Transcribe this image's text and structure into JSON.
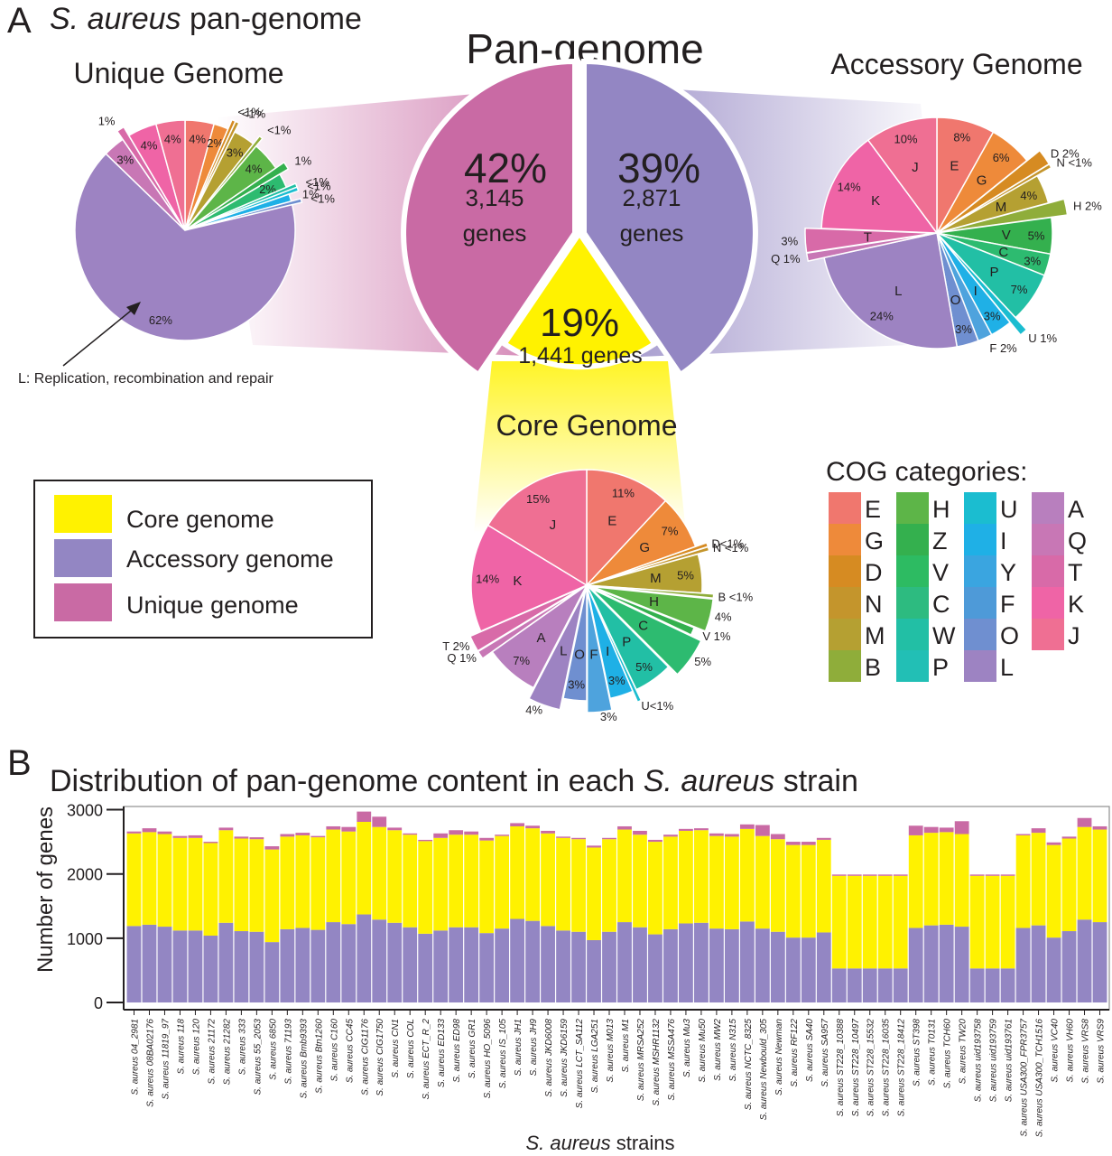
{
  "panel_a": {
    "letter": "A",
    "title_italic": "S. aureus",
    "title_rest": " pan-genome",
    "center_title": "Pan-genome"
  },
  "pan": {
    "unique": {
      "pct": "42%",
      "count": "3,145",
      "unit": "genes",
      "color": "#c96aa4"
    },
    "accessory": {
      "pct": "39%",
      "count": "2,871",
      "unit": "genes",
      "color": "#9386c3"
    },
    "core": {
      "pct": "19%",
      "count_line": "1,441 genes",
      "color": "#fff200"
    }
  },
  "unique_genome": {
    "title": "Unique Genome",
    "arrow_note": "L: Replication, recombination and repair",
    "slices": [
      {
        "cat": "E",
        "value": 4,
        "label": "4%",
        "color": "#f0776e"
      },
      {
        "cat": "G",
        "value": 2,
        "label": "2%",
        "color": "#ee8a3a"
      },
      {
        "cat": "D",
        "value": 0.5,
        "label": "<1%",
        "color": "#d68b22",
        "explode": true
      },
      {
        "cat": "N",
        "value": 0.5,
        "label": "<1%",
        "color": "#c4952c",
        "explode": true
      },
      {
        "cat": "M",
        "value": 3,
        "label": "3%",
        "color": "#b5a032"
      },
      {
        "cat": "B",
        "value": 0.5,
        "label": "<1%",
        "color": "#8fad3a",
        "explode": true
      },
      {
        "cat": "H",
        "value": 4,
        "label": "4%",
        "color": "#5db548"
      },
      {
        "cat": "Z",
        "value": 1,
        "label": "1%",
        "color": "#34b04e",
        "explode": true
      },
      {
        "cat": "V",
        "value": 2,
        "label": "2%",
        "color": "#2dbb70"
      },
      {
        "cat": "C",
        "value": 0.5,
        "label": "<1%",
        "color": "#22bfa5",
        "explode": true
      },
      {
        "cat": "U",
        "value": 0.5,
        "label": "<1%",
        "color": "#1bbdd0",
        "explode": true
      },
      {
        "cat": "I",
        "value": 1,
        "label": "1%",
        "color": "#1fb0e6"
      },
      {
        "cat": "O",
        "value": 0.5,
        "label": "<1%",
        "color": "#6f8fd0",
        "explode": true
      },
      {
        "cat": "L",
        "value": 62,
        "label": "62%",
        "color": "#9d83c2"
      },
      {
        "cat": "Q",
        "value": 3,
        "label": "3%",
        "color": "#c877b5"
      },
      {
        "cat": "T",
        "value": 1,
        "label": "1%",
        "color": "#d86aa8",
        "explode": true
      },
      {
        "cat": "K",
        "value": 4,
        "label": "4%",
        "color": "#ef64a6"
      },
      {
        "cat": "J",
        "value": 4,
        "label": "4%",
        "color": "#ef6f93"
      }
    ]
  },
  "accessory_genome": {
    "title": "Accessory Genome",
    "slices": [
      {
        "cat": "E",
        "value": 8,
        "label": "8%",
        "letter": "E",
        "color": "#f0776e"
      },
      {
        "cat": "G",
        "value": 6,
        "label": "6%",
        "letter": "G",
        "color": "#ee8a3a"
      },
      {
        "cat": "D",
        "value": 2,
        "label": "D 2%",
        "letter": "",
        "color": "#d68b22",
        "explode": true
      },
      {
        "cat": "N",
        "value": 0.5,
        "label": "N <1%",
        "letter": "",
        "color": "#c4952c",
        "explode": true
      },
      {
        "cat": "M",
        "value": 4,
        "label": "4%",
        "letter": "M",
        "color": "#b5a032"
      },
      {
        "cat": "H",
        "value": 2,
        "label": "H  2%",
        "letter": "",
        "color": "#8fad3a",
        "explode": true
      },
      {
        "cat": "V",
        "value": 5,
        "label": "5%",
        "letter": "V",
        "color": "#34b04e"
      },
      {
        "cat": "C",
        "value": 3,
        "label": "3%",
        "letter": "C",
        "color": "#2dbb70"
      },
      {
        "cat": "P",
        "value": 7,
        "label": "7%",
        "letter": "P",
        "color": "#22bfa5"
      },
      {
        "cat": "U",
        "value": 1,
        "label": "U  1%",
        "letter": "",
        "color": "#1bbdd0",
        "explode": true
      },
      {
        "cat": "I",
        "value": 3,
        "label": "3%",
        "letter": "I",
        "color": "#1fb0e6"
      },
      {
        "cat": "F",
        "value": 2,
        "label": "F 2%",
        "letter": "",
        "color": "#4ea3dd"
      },
      {
        "cat": "O",
        "value": 3,
        "label": "3%",
        "letter": "O",
        "color": "#6f8fd0"
      },
      {
        "cat": "L",
        "value": 24,
        "label": "24%",
        "letter": "L",
        "color": "#9d83c2"
      },
      {
        "cat": "Q",
        "value": 1,
        "label": "Q 1%",
        "letter": "",
        "color": "#c877b5",
        "explode": true
      },
      {
        "cat": "T",
        "value": 3,
        "label": "3%",
        "letter": "T",
        "color": "#d86aa8",
        "explode": true
      },
      {
        "cat": "K",
        "value": 14,
        "label": "14%",
        "letter": "K",
        "color": "#ef64a6"
      },
      {
        "cat": "J",
        "value": 10,
        "label": "10%",
        "letter": "J",
        "color": "#ef6f93"
      }
    ]
  },
  "core_genome": {
    "title": "Core Genome",
    "slices": [
      {
        "cat": "E",
        "value": 11,
        "label": "11%",
        "letter": "E",
        "color": "#f0776e"
      },
      {
        "cat": "G",
        "value": 7,
        "label": "7%",
        "letter": "G",
        "color": "#ee8a3a"
      },
      {
        "cat": "D",
        "value": 0.5,
        "label": "D<1%",
        "letter": "",
        "color": "#d68b22",
        "explode": true
      },
      {
        "cat": "N",
        "value": 0.5,
        "label": "N <1%",
        "letter": "",
        "color": "#c4952c",
        "explode": true
      },
      {
        "cat": "M",
        "value": 5,
        "label": "5%",
        "letter": "M",
        "color": "#b5a032"
      },
      {
        "cat": "B",
        "value": 0.5,
        "label": "B <1%",
        "letter": "",
        "color": "#8fad3a",
        "explode": true
      },
      {
        "cat": "H",
        "value": 4,
        "label": "4%",
        "letter": "H",
        "color": "#5db548",
        "explode": true
      },
      {
        "cat": "V",
        "value": 1,
        "label": "V 1%",
        "letter": "",
        "color": "#34b04e"
      },
      {
        "cat": "C",
        "value": 5,
        "label": "5%",
        "letter": "C",
        "color": "#2dbb70",
        "explode": true
      },
      {
        "cat": "P",
        "value": 5,
        "label": "5%",
        "letter": "P",
        "color": "#22bfa5"
      },
      {
        "cat": "U",
        "value": 0.5,
        "label": "U<1%",
        "letter": "",
        "color": "#1bbdd0",
        "explode": true
      },
      {
        "cat": "I",
        "value": 3,
        "label": "3%",
        "letter": "I",
        "color": "#1fb0e6"
      },
      {
        "cat": "F",
        "value": 3,
        "label": "3%",
        "letter": "F",
        "color": "#4ea3dd",
        "explode": true
      },
      {
        "cat": "O",
        "value": 3,
        "label": "3%",
        "letter": "O",
        "color": "#6f8fd0"
      },
      {
        "cat": "L",
        "value": 4,
        "label": "4%",
        "letter": "L",
        "color": "#9d83c2",
        "explode": true
      },
      {
        "cat": "A",
        "value": 7,
        "label": "7%",
        "letter": "A",
        "color": "#b87fbe"
      },
      {
        "cat": "Q",
        "value": 1,
        "label": "Q  1%",
        "letter": "",
        "color": "#c877b5",
        "explode": true
      },
      {
        "cat": "T",
        "value": 2,
        "label": "T 2%",
        "letter": "",
        "color": "#d86aa8",
        "explode": true
      },
      {
        "cat": "K",
        "value": 14,
        "label": "14%",
        "letter": "K",
        "color": "#ef64a6"
      },
      {
        "cat": "J",
        "value": 15,
        "label": "15%",
        "letter": "J",
        "color": "#ef6f93"
      }
    ]
  },
  "legend": {
    "items": [
      {
        "label": "Core genome",
        "color": "#fff200"
      },
      {
        "label": "Accessory genome",
        "color": "#9386c3"
      },
      {
        "label": "Unique genome",
        "color": "#c96aa4"
      }
    ]
  },
  "cog": {
    "title": "COG categories:",
    "columns": [
      [
        {
          "l": "E",
          "c": "#f0776e"
        },
        {
          "l": "G",
          "c": "#ee8a3a"
        },
        {
          "l": "D",
          "c": "#d68b22"
        },
        {
          "l": "N",
          "c": "#c4952c"
        },
        {
          "l": "M",
          "c": "#b5a032"
        },
        {
          "l": "B",
          "c": "#8fad3a"
        }
      ],
      [
        {
          "l": "H",
          "c": "#5db548"
        },
        {
          "l": "Z",
          "c": "#34b04e"
        },
        {
          "l": "V",
          "c": "#2dbb62"
        },
        {
          "l": "C",
          "c": "#2dbb80"
        },
        {
          "l": "W",
          "c": "#22bfa5"
        },
        {
          "l": "P",
          "c": "#22bfb5"
        }
      ],
      [
        {
          "l": "U",
          "c": "#1bbdd0"
        },
        {
          "l": "I",
          "c": "#1fb0e6"
        },
        {
          "l": "Y",
          "c": "#3aa5e0"
        },
        {
          "l": "F",
          "c": "#4e9ad8"
        },
        {
          "l": "O",
          "c": "#6f8fd0"
        },
        {
          "l": "L",
          "c": "#9d83c2"
        }
      ],
      [
        {
          "l": "A",
          "c": "#b87fbe"
        },
        {
          "l": "Q",
          "c": "#c877b5"
        },
        {
          "l": "T",
          "c": "#d86aa8"
        },
        {
          "l": "K",
          "c": "#ef64a6"
        },
        {
          "l": "J",
          "c": "#ef6f93"
        }
      ]
    ]
  },
  "panel_b": {
    "letter": "B",
    "title_pre": "Distribution of pan-genome content in each ",
    "title_italic": "S. aureus",
    "title_post": " strain",
    "ylabel": "Number of genes",
    "xlabel_italic": "S. aureus",
    "xlabel_rest": " strains"
  },
  "chart_data": {
    "type": "bar",
    "stacked": true,
    "title": "Distribution of pan-genome content in each S. aureus strain",
    "xlabel": "S. aureus strains",
    "ylabel": "Number of genes",
    "ylim": [
      0,
      3050
    ],
    "yticks": [
      0,
      1000,
      2000,
      3000
    ],
    "grid": false,
    "categories": [
      "S. aureus 04_2981",
      "S. aureus 08BA02176",
      "S. aureus 11819_97",
      "S. aureus 118",
      "S. aureus 120",
      "S. aureus 21172",
      "S. aureus 21282",
      "S. aureus 333",
      "S. aureus 55_2053",
      "S. aureus 6850",
      "S. aureus 71193",
      "S. aureus Bmb9393",
      "S. aureus Btn1260",
      "S. aureus C160",
      "S. aureus CC45",
      "S. aureus CIG1176",
      "S. aureus CIG1750",
      "S. aureus CN1",
      "S. aureus COL",
      "S. aureus ECT_R_2",
      "S. aureus ED133",
      "S. aureus ED98",
      "S. aureus GR1",
      "S. aureus HO_5096",
      "S. aureus IS_105",
      "S. aureus JH1",
      "S. aureus JH9",
      "S. aureus JKD6008",
      "S. aureus JKD6159",
      "S. aureus LCT_SA112",
      "S. aureus LGA251",
      "S. aureus M013",
      "S. aureus M1",
      "S. aureus MRSA252",
      "S. aureus MSHR1132",
      "S. aureus MSSA476",
      "S. aureus Mu3",
      "S. aureus Mu50",
      "S. aureus MW2",
      "S. aureus N315",
      "S. aureus NCTC_8325",
      "S. aureus Newbould_305",
      "S. aureus Newman",
      "S. aureus RF122",
      "S. aureus SA40",
      "S. aureus SA957",
      "S. aureus ST228_10388",
      "S. aureus ST228_10497",
      "S. aureus ST228_15532",
      "S. aureus ST228_16035",
      "S. aureus ST228_18412",
      "S. aureus ST398",
      "S. aureus T0131",
      "S. aureus TCH60",
      "S. aureus TW20",
      "S. aureus uid193758",
      "S. aureus uid193759",
      "S. aureus uid193761",
      "S. aureus USA300_FPR3757",
      "S. aureus USA300_TCH1516",
      "S. aureus VC40",
      "S. aureus VH60",
      "S. aureus VRS8",
      "S. aureus VRS9"
    ],
    "series": [
      {
        "name": "Accessory genome",
        "color": "#9386c3",
        "values": [
          1190,
          1210,
          1180,
          1120,
          1120,
          1040,
          1240,
          1110,
          1100,
          940,
          1140,
          1160,
          1130,
          1250,
          1220,
          1370,
          1290,
          1240,
          1170,
          1070,
          1120,
          1170,
          1170,
          1080,
          1150,
          1300,
          1270,
          1190,
          1120,
          1100,
          970,
          1100,
          1250,
          1170,
          1060,
          1140,
          1230,
          1240,
          1150,
          1140,
          1260,
          1150,
          1100,
          1010,
          1010,
          1090,
          530,
          530,
          530,
          530,
          530,
          1160,
          1200,
          1210,
          1180,
          530,
          530,
          530,
          1160,
          1200,
          1010,
          1110,
          1290,
          1250
        ]
      },
      {
        "name": "Core genome",
        "color": "#fff200",
        "values": [
          1441,
          1441,
          1441,
          1441,
          1441,
          1441,
          1441,
          1441,
          1441,
          1441,
          1441,
          1441,
          1441,
          1441,
          1441,
          1441,
          1441,
          1441,
          1441,
          1441,
          1441,
          1441,
          1441,
          1441,
          1441,
          1441,
          1441,
          1441,
          1441,
          1441,
          1441,
          1441,
          1441,
          1441,
          1441,
          1441,
          1441,
          1441,
          1441,
          1441,
          1441,
          1441,
          1441,
          1441,
          1441,
          1441,
          1441,
          1441,
          1441,
          1441,
          1441,
          1441,
          1441,
          1441,
          1441,
          1441,
          1441,
          1441,
          1441,
          1441,
          1441,
          1441,
          1441,
          1441
        ]
      },
      {
        "name": "Unique genome",
        "color": "#c96aa4",
        "values": [
          30,
          60,
          40,
          30,
          40,
          20,
          40,
          30,
          30,
          50,
          40,
          40,
          20,
          50,
          70,
          160,
          160,
          40,
          20,
          20,
          70,
          70,
          50,
          40,
          20,
          50,
          40,
          40,
          20,
          20,
          30,
          20,
          50,
          60,
          30,
          30,
          30,
          30,
          40,
          40,
          70,
          170,
          80,
          50,
          50,
          30,
          20,
          20,
          20,
          20,
          20,
          150,
          90,
          70,
          200,
          20,
          20,
          20,
          20,
          70,
          40,
          30,
          140,
          50
        ]
      }
    ]
  }
}
